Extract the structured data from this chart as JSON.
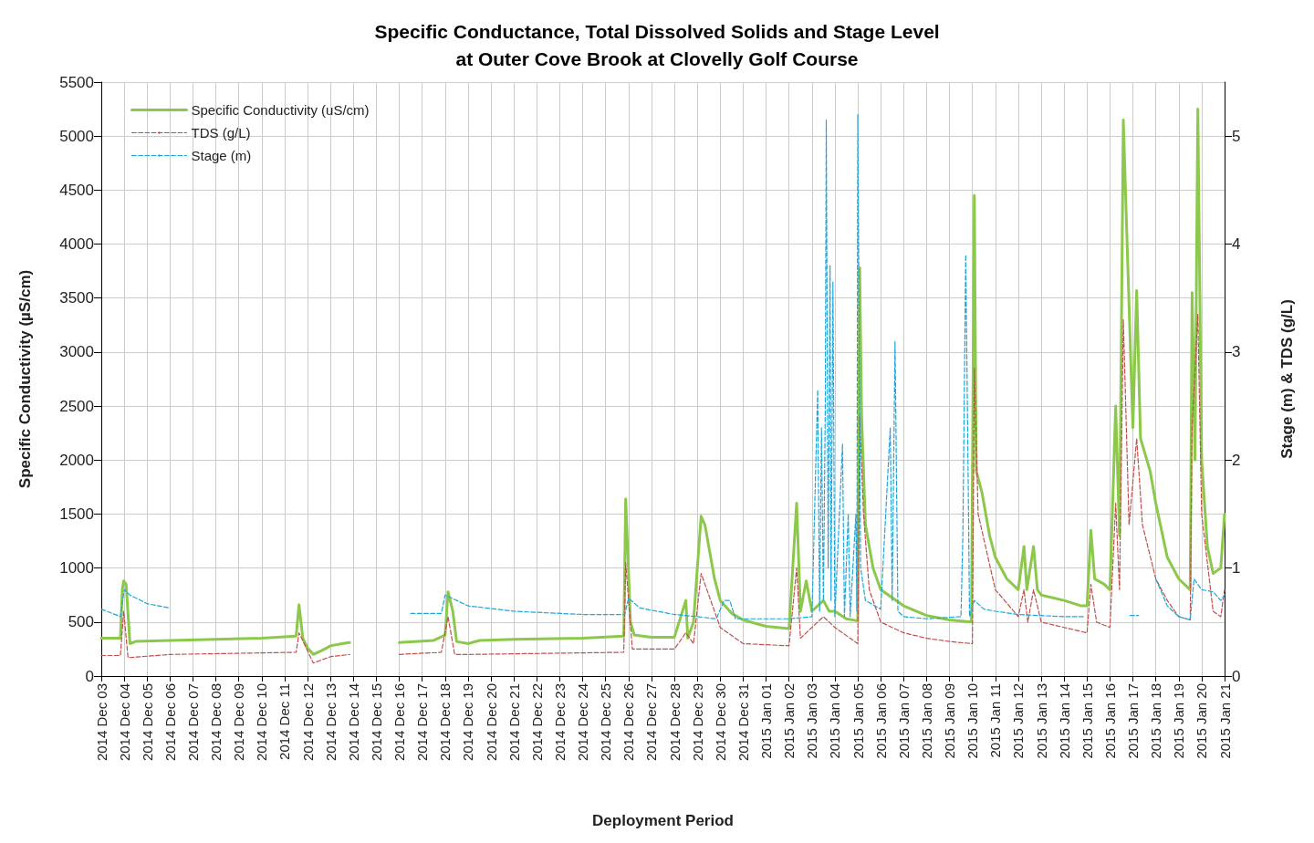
{
  "chart_data": {
    "type": "line",
    "title": "Specific Conductance, Total Dissolved Solids and Stage Level\nat Outer Cove Brook at Clovelly Golf Course",
    "xlabel": "Deployment Period",
    "ylabel": "Specific Conductivity (µS/cm)",
    "y2label": "Stage (m) & TDS (g/L)",
    "xlim": [
      "2014-12-03",
      "2015-01-21"
    ],
    "xticks": [
      {
        "value": "2014-12-03",
        "label": "2014 Dec 03"
      },
      {
        "value": "2014-12-04",
        "label": "2014 Dec 04"
      },
      {
        "value": "2014-12-05",
        "label": "2014 Dec 05"
      },
      {
        "value": "2014-12-06",
        "label": "2014 Dec 06"
      },
      {
        "value": "2014-12-07",
        "label": "2014 Dec 07"
      },
      {
        "value": "2014-12-08",
        "label": "2014 Dec 08"
      },
      {
        "value": "2014-12-09",
        "label": "2014 Dec 09"
      },
      {
        "value": "2014-12-10",
        "label": "2014 Dec 10"
      },
      {
        "value": "2014-12-11",
        "label": "2014 Dec 11"
      },
      {
        "value": "2014-12-12",
        "label": "2014 Dec 12"
      },
      {
        "value": "2014-12-13",
        "label": "2014 Dec 13"
      },
      {
        "value": "2014-12-14",
        "label": "2014 Dec 14"
      },
      {
        "value": "2014-12-15",
        "label": "2014 Dec 15"
      },
      {
        "value": "2014-12-16",
        "label": "2014 Dec 16"
      },
      {
        "value": "2014-12-17",
        "label": "2014 Dec 17"
      },
      {
        "value": "2014-12-18",
        "label": "2014 Dec 18"
      },
      {
        "value": "2014-12-19",
        "label": "2014 Dec 19"
      },
      {
        "value": "2014-12-20",
        "label": "2014 Dec 20"
      },
      {
        "value": "2014-12-21",
        "label": "2014 Dec 21"
      },
      {
        "value": "2014-12-22",
        "label": "2014 Dec 22"
      },
      {
        "value": "2014-12-23",
        "label": "2014 Dec 23"
      },
      {
        "value": "2014-12-24",
        "label": "2014 Dec 24"
      },
      {
        "value": "2014-12-25",
        "label": "2014 Dec 25"
      },
      {
        "value": "2014-12-26",
        "label": "2014 Dec 26"
      },
      {
        "value": "2014-12-27",
        "label": "2014 Dec 27"
      },
      {
        "value": "2014-12-28",
        "label": "2014 Dec 28"
      },
      {
        "value": "2014-12-29",
        "label": "2014 Dec 29"
      },
      {
        "value": "2014-12-30",
        "label": "2014 Dec 30"
      },
      {
        "value": "2014-12-31",
        "label": "2014 Dec 31"
      },
      {
        "value": "2015-01-01",
        "label": "2015 Jan 01"
      },
      {
        "value": "2015-01-02",
        "label": "2015 Jan 02"
      },
      {
        "value": "2015-01-03",
        "label": "2015 Jan 03"
      },
      {
        "value": "2015-01-04",
        "label": "2015 Jan 04"
      },
      {
        "value": "2015-01-05",
        "label": "2015 Jan 05"
      },
      {
        "value": "2015-01-06",
        "label": "2015 Jan 06"
      },
      {
        "value": "2015-01-07",
        "label": "2015 Jan 07"
      },
      {
        "value": "2015-01-08",
        "label": "2015 Jan 08"
      },
      {
        "value": "2015-01-09",
        "label": "2015 Jan 09"
      },
      {
        "value": "2015-01-10",
        "label": "2015 Jan 10"
      },
      {
        "value": "2015-01-11",
        "label": "2015 Jan 11"
      },
      {
        "value": "2015-01-12",
        "label": "2015 Jan 12"
      },
      {
        "value": "2015-01-13",
        "label": "2015 Jan 13"
      },
      {
        "value": "2015-01-14",
        "label": "2015 Jan 14"
      },
      {
        "value": "2015-01-15",
        "label": "2015 Jan 15"
      },
      {
        "value": "2015-01-16",
        "label": "2015 Jan 16"
      },
      {
        "value": "2015-01-17",
        "label": "2015 Jan 17"
      },
      {
        "value": "2015-01-18",
        "label": "2015 Jan 18"
      },
      {
        "value": "2015-01-19",
        "label": "2015 Jan 19"
      },
      {
        "value": "2015-01-20",
        "label": "2015 Jan 20"
      },
      {
        "value": "2015-01-21",
        "label": "2015 Jan 21"
      }
    ],
    "ylim": [
      0,
      5500
    ],
    "yticks": [
      0,
      500,
      1000,
      1500,
      2000,
      2500,
      3000,
      3500,
      4000,
      4500,
      5000,
      5500
    ],
    "y2lim": [
      0,
      5.5
    ],
    "y2ticks": [
      0,
      1,
      2,
      3,
      4,
      5
    ],
    "grid": true,
    "legend": "top left",
    "marker": "none",
    "series": [
      {
        "name": "Specific Conductivity (uS/cm)",
        "color": "#8cc84b",
        "line_style": "solid",
        "x": [
          "2014-12-03T00:00",
          "2014-12-03T20:00",
          "2014-12-03T22:00",
          "2014-12-03T23:30",
          "2014-12-04T02:00",
          "2014-12-04T06:00",
          "2014-12-04T12:00",
          "2014-12-06T00:00",
          "2014-12-08T00:00",
          "2014-12-10T00:00",
          "2014-12-11T12:00",
          "2014-12-11T15:00",
          "2014-12-11T19:00",
          "2014-12-12T00:00",
          "2014-12-12T06:00",
          "2014-12-12T18:00",
          "2014-12-13T00:00",
          "2014-12-13T12:00",
          "2014-12-13T20:00",
          "2014-12-15T00:00",
          "2014-12-16T00:00",
          "2014-12-17T12:00",
          "2014-12-18T00:00",
          "2014-12-18T03:00",
          "2014-12-18T08:00",
          "2014-12-18T12:00",
          "2014-12-19T00:00",
          "2014-12-19T12:00",
          "2014-12-21T00:00",
          "2014-12-24T00:00",
          "2014-12-25T19:00",
          "2014-12-25T21:00",
          "2014-12-26T02:00",
          "2014-12-26T06:00",
          "2014-12-27T00:00",
          "2014-12-28T00:00",
          "2014-12-28T12:00",
          "2014-12-28T14:00",
          "2014-12-28T20:00",
          "2014-12-29T00:00",
          "2014-12-29T04:00",
          "2014-12-29T08:00",
          "2014-12-29T18:00",
          "2014-12-30T00:00",
          "2014-12-30T12:00",
          "2014-12-31T00:00",
          "2015-01-01T00:00",
          "2015-01-02T00:00",
          "2015-01-02T08:00",
          "2015-01-02T12:00",
          "2015-01-02T18:00",
          "2015-01-03T00:00",
          "2015-01-03T12:00",
          "2015-01-03T18:00",
          "2015-01-04T00:00",
          "2015-01-04T12:00",
          "2015-01-05T00:00",
          "2015-01-05T02:00",
          "2015-01-05T04:00",
          "2015-01-05T08:00",
          "2015-01-05T16:00",
          "2015-01-06T00:00",
          "2015-01-07T00:00",
          "2015-01-08T00:00",
          "2015-01-09T00:00",
          "2015-01-09T23:00",
          "2015-01-10T02:00",
          "2015-01-10T04:00",
          "2015-01-10T10:00",
          "2015-01-10T18:00",
          "2015-01-11T00:00",
          "2015-01-11T12:00",
          "2015-01-12T00:00",
          "2015-01-12T06:00",
          "2015-01-12T09:00",
          "2015-01-12T16:00",
          "2015-01-12T20:00",
          "2015-01-13T00:00",
          "2015-01-14T00:00",
          "2015-01-14T18:00",
          "2015-01-15T00:00",
          "2015-01-15T04:00",
          "2015-01-15T08:00",
          "2015-01-15T18:00",
          "2015-01-16T00:00",
          "2015-01-16T06:00",
          "2015-01-16T10:00",
          "2015-01-16T14:00",
          "2015-01-16T18:00",
          "2015-01-17T00:00",
          "2015-01-17T04:00",
          "2015-01-17T08:00",
          "2015-01-17T18:00",
          "2015-01-18T00:00",
          "2015-01-18T12:00",
          "2015-01-19T00:00",
          "2015-01-19T12:00",
          "2015-01-19T14:00",
          "2015-01-19T17:00",
          "2015-01-19T20:00",
          "2015-01-20T00:00",
          "2015-01-20T06:00",
          "2015-01-20T12:00",
          "2015-01-20T20:00",
          "2015-01-21T00:00"
        ],
        "values": [
          350,
          350,
          800,
          880,
          850,
          300,
          320,
          330,
          340,
          350,
          370,
          660,
          350,
          260,
          200,
          250,
          280,
          300,
          310,
          null,
          310,
          330,
          380,
          780,
          600,
          320,
          300,
          330,
          340,
          350,
          370,
          1640,
          500,
          380,
          360,
          360,
          700,
          350,
          500,
          1000,
          1480,
          1400,
          900,
          700,
          580,
          520,
          460,
          440,
          1600,
          600,
          880,
          600,
          700,
          600,
          600,
          530,
          510,
          3780,
          2400,
          1400,
          1000,
          800,
          650,
          560,
          520,
          500,
          4450,
          1900,
          1700,
          1300,
          1100,
          900,
          800,
          1200,
          800,
          1200,
          800,
          750,
          700,
          650,
          650,
          1350,
          900,
          850,
          800,
          2500,
          1300,
          5150,
          4000,
          2300,
          3570,
          2200,
          1900,
          1600,
          1100,
          900,
          800,
          3550,
          2000,
          5250,
          2000,
          1200,
          950,
          1000,
          1500
        ]
      },
      {
        "name": "TDS (g/L)",
        "color": "#c0504d",
        "line_style": "dashed",
        "axis": "y2",
        "x": [
          "2014-12-03T00:00",
          "2014-12-03T20:00",
          "2014-12-03T23:30",
          "2014-12-04T04:00",
          "2014-12-06T00:00",
          "2014-12-11T12:00",
          "2014-12-11T15:00",
          "2014-12-12T06:00",
          "2014-12-13T00:00",
          "2014-12-13T20:00",
          "2014-12-15T00:00",
          "2014-12-16T00:00",
          "2014-12-17T20:00",
          "2014-12-18T03:00",
          "2014-12-18T10:00",
          "2014-12-19T00:00",
          "2014-12-25T19:00",
          "2014-12-25T21:00",
          "2014-12-26T04:00",
          "2014-12-28T00:00",
          "2014-12-28T12:00",
          "2014-12-28T20:00",
          "2014-12-29T04:00",
          "2014-12-30T00:00",
          "2014-12-31T00:00",
          "2015-01-02T00:00",
          "2015-01-02T08:00",
          "2015-01-02T12:00",
          "2015-01-03T00:00",
          "2015-01-03T12:00",
          "2015-01-04T00:00",
          "2015-01-05T00:00",
          "2015-01-05T02:00",
          "2015-01-05T06:00",
          "2015-01-05T12:00",
          "2015-01-06T00:00",
          "2015-01-07T00:00",
          "2015-01-08T00:00",
          "2015-01-09T00:00",
          "2015-01-10T00:00",
          "2015-01-10T02:00",
          "2015-01-10T06:00",
          "2015-01-11T00:00",
          "2015-01-12T00:00",
          "2015-01-12T06:00",
          "2015-01-12T10:00",
          "2015-01-12T16:00",
          "2015-01-13T00:00",
          "2015-01-14T00:00",
          "2015-01-15T00:00",
          "2015-01-15T04:00",
          "2015-01-15T10:00",
          "2015-01-16T00:00",
          "2015-01-16T06:00",
          "2015-01-16T10:00",
          "2015-01-16T14:00",
          "2015-01-16T20:00",
          "2015-01-17T04:00",
          "2015-01-17T10:00",
          "2015-01-18T00:00",
          "2015-01-18T12:00",
          "2015-01-19T00:00",
          "2015-01-19T12:00",
          "2015-01-19T14:00",
          "2015-01-19T20:00",
          "2015-01-20T00:00",
          "2015-01-20T12:00",
          "2015-01-20T20:00",
          "2015-01-21T00:00"
        ],
        "values": [
          0.19,
          0.19,
          0.6,
          0.17,
          0.2,
          0.22,
          0.4,
          0.12,
          0.18,
          0.2,
          null,
          0.2,
          0.22,
          0.55,
          0.2,
          0.2,
          0.22,
          1.05,
          0.25,
          0.25,
          0.4,
          0.3,
          0.95,
          0.45,
          0.3,
          0.28,
          1.0,
          0.35,
          0.45,
          0.55,
          0.45,
          0.3,
          2.4,
          1.5,
          0.8,
          0.5,
          0.4,
          0.35,
          0.32,
          0.3,
          2.85,
          1.5,
          0.8,
          0.55,
          0.8,
          0.5,
          0.8,
          0.5,
          0.45,
          0.4,
          0.85,
          0.5,
          0.45,
          1.6,
          0.8,
          3.3,
          1.4,
          2.2,
          1.4,
          0.9,
          0.7,
          0.55,
          0.52,
          2.3,
          3.35,
          1.5,
          0.6,
          0.55,
          0.8
        ]
      },
      {
        "name": "Stage (m)",
        "color": "#1fa6dc",
        "line_style": "dashed",
        "axis": "y2",
        "x": [
          "2014-12-03T00:00",
          "2014-12-03T20:00",
          "2014-12-04T00:00",
          "2014-12-04T06:00",
          "2014-12-05T00:00",
          "2014-12-06T00:00",
          "2014-12-10T00:00",
          "2014-12-16T12:00",
          "2014-12-17T20:00",
          "2014-12-18T00:00",
          "2014-12-18T12:00",
          "2014-12-19T00:00",
          "2014-12-21T00:00",
          "2014-12-24T00:00",
          "2014-12-25T20:00",
          "2014-12-26T00:00",
          "2014-12-26T12:00",
          "2014-12-28T00:00",
          "2014-12-29T00:00",
          "2014-12-29T20:00",
          "2014-12-30T04:00",
          "2014-12-30T10:00",
          "2014-12-30T16:00",
          "2015-01-02T00:00",
          "2015-01-03T00:00",
          "2015-01-03T06:00",
          "2015-01-03T08:00",
          "2015-01-03T10:00",
          "2015-01-03T12:00",
          "2015-01-03T14:00",
          "2015-01-03T15:00",
          "2015-01-03T17:00",
          "2015-01-03T19:00",
          "2015-01-03T20:00",
          "2015-01-03T22:00",
          "2015-01-04T00:00",
          "2015-01-04T08:00",
          "2015-01-04T10:00",
          "2015-01-04T14:00",
          "2015-01-04T16:00",
          "2015-01-04T22:00",
          "2015-01-04T23:00",
          "2015-01-05T00:00",
          "2015-01-05T03:00",
          "2015-01-05T08:00",
          "2015-01-06T00:00",
          "2015-01-06T10:00",
          "2015-01-06T12:00",
          "2015-01-06T15:00",
          "2015-01-06T18:00",
          "2015-01-07T00:00",
          "2015-01-08T00:00",
          "2015-01-09T12:00",
          "2015-01-09T14:00",
          "2015-01-09T17:00",
          "2015-01-09T19:00",
          "2015-01-09T21:00",
          "2015-01-10T02:00",
          "2015-01-10T12:00",
          "2015-01-11T00:00",
          "2015-01-12T00:00",
          "2015-01-13T00:00",
          "2015-01-14T00:00",
          "2015-01-14T20:00",
          "2015-01-15T12:00",
          "2015-01-16T21:00",
          "2015-01-17T06:00",
          "2015-01-17T12:00",
          "2015-01-18T00:00",
          "2015-01-18T12:00",
          "2015-01-19T00:00",
          "2015-01-19T12:00",
          "2015-01-19T16:00",
          "2015-01-20T00:00",
          "2015-01-20T12:00",
          "2015-01-20T20:00",
          "2015-01-21T00:00"
        ],
        "values": [
          0.62,
          0.55,
          0.8,
          0.75,
          0.67,
          0.63,
          null,
          0.58,
          0.58,
          0.75,
          0.7,
          0.65,
          0.6,
          0.57,
          0.57,
          0.72,
          0.63,
          0.57,
          0.55,
          0.53,
          0.7,
          0.7,
          0.53,
          0.53,
          0.55,
          2.65,
          0.6,
          2.3,
          0.7,
          2.5,
          5.15,
          1.0,
          3.8,
          0.7,
          3.65,
          0.55,
          2.15,
          0.55,
          1.5,
          0.55,
          1.5,
          0.6,
          5.2,
          1.0,
          0.7,
          0.62,
          2.3,
          0.7,
          3.1,
          0.6,
          0.55,
          0.53,
          0.55,
          1.3,
          3.9,
          2.3,
          0.55,
          0.7,
          0.62,
          0.6,
          0.57,
          0.56,
          0.55,
          0.55,
          null,
          0.56,
          0.56,
          null,
          0.9,
          0.65,
          0.55,
          0.52,
          0.9,
          0.8,
          0.78,
          0.7,
          0.75
        ]
      }
    ]
  }
}
